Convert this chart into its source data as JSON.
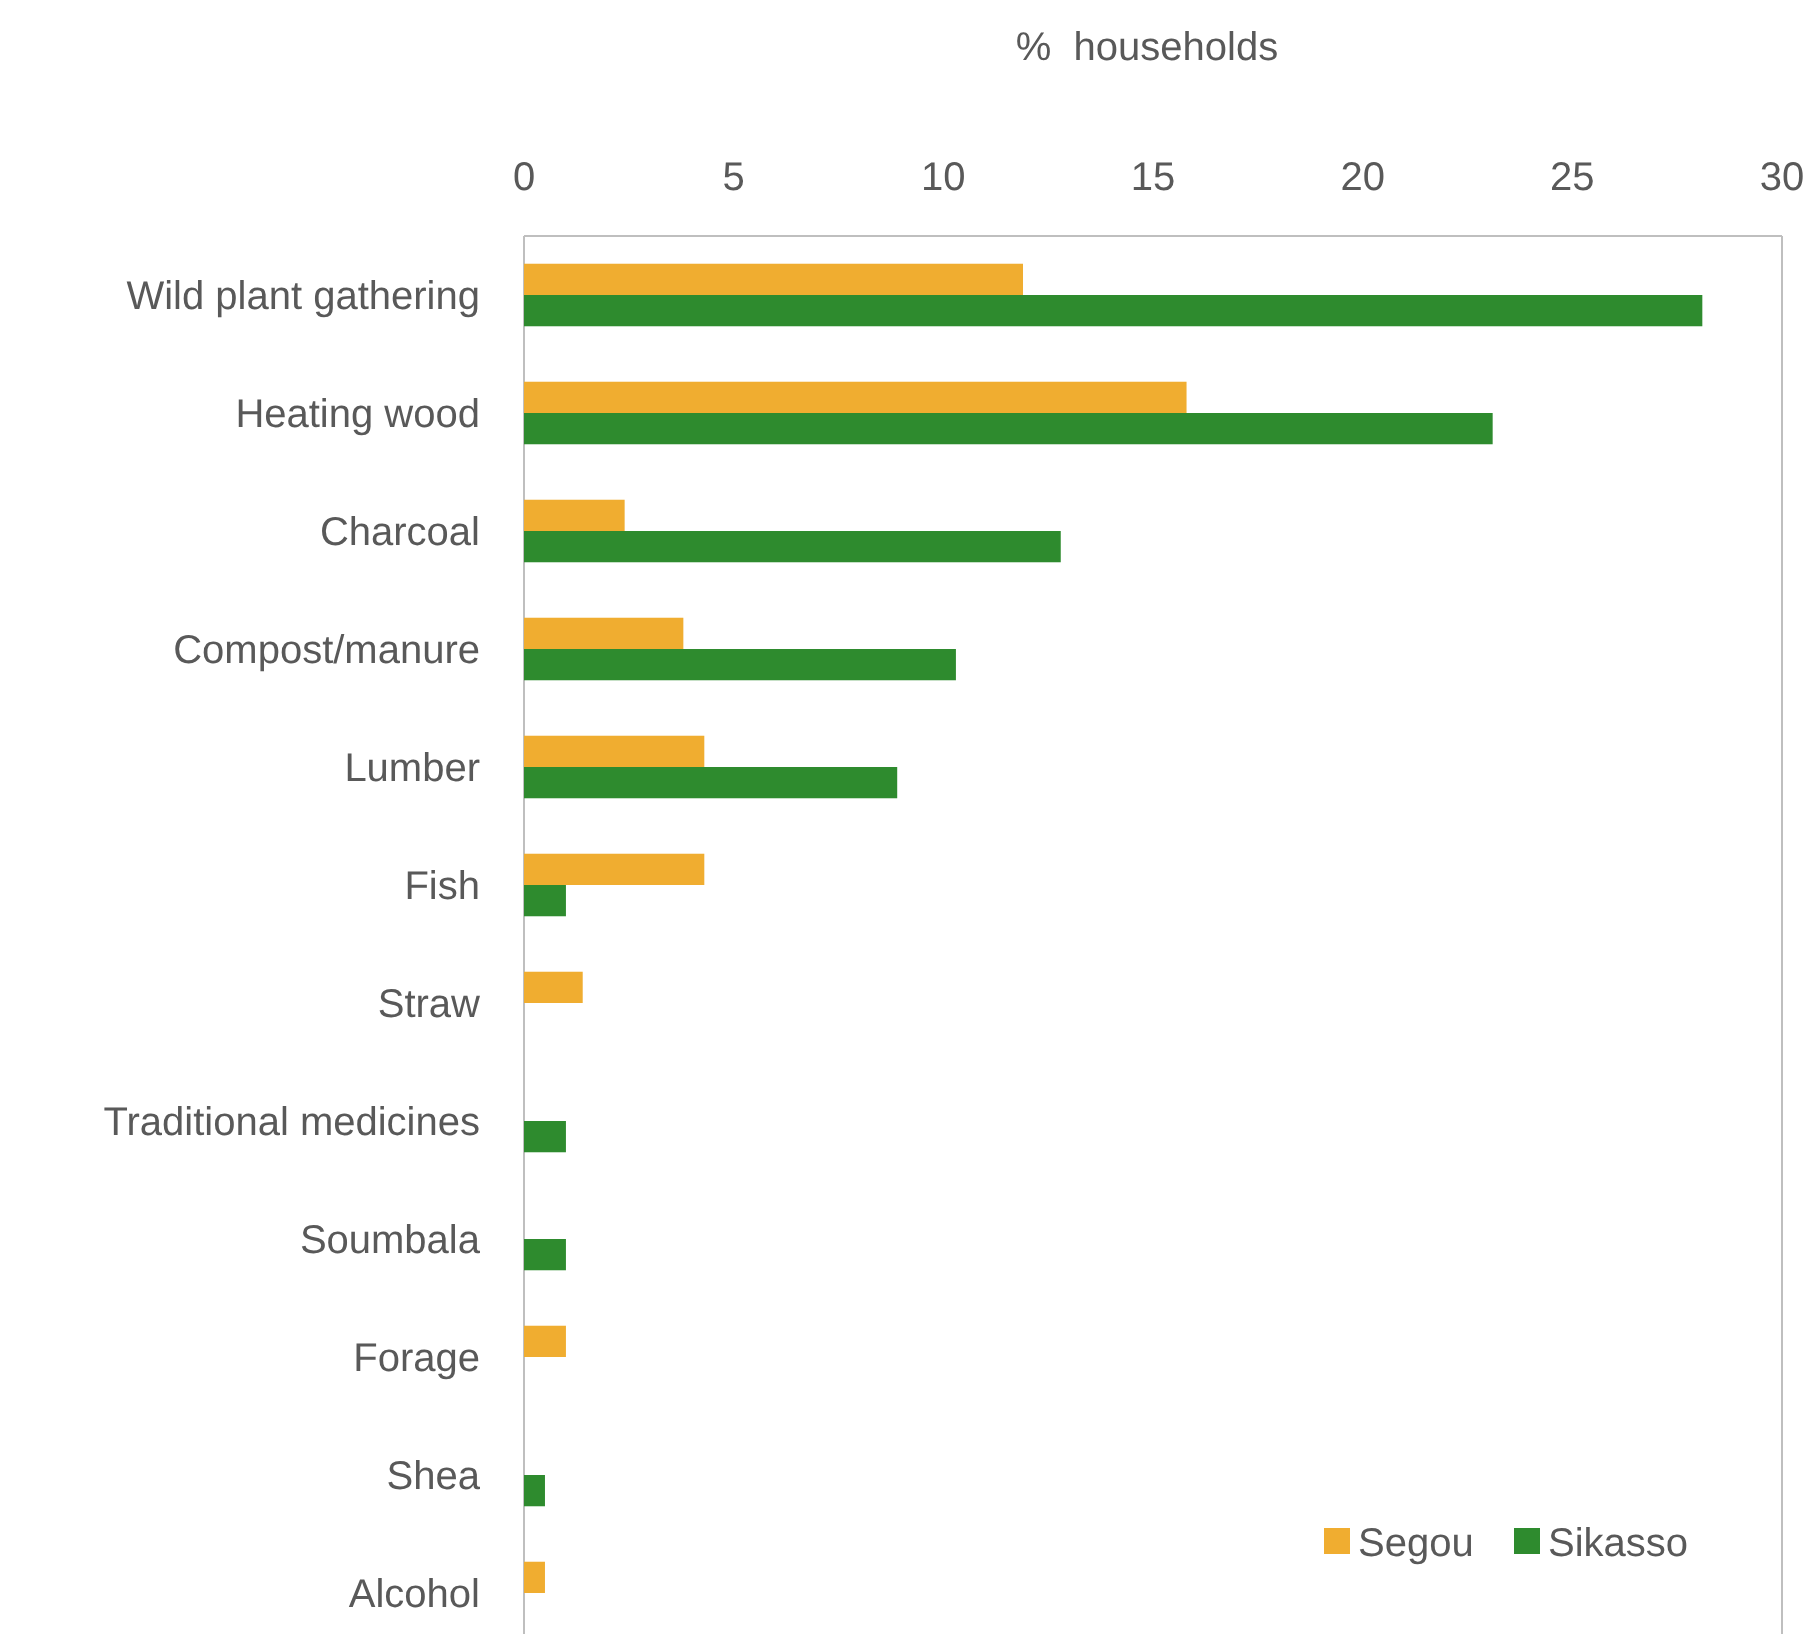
{
  "chart_data": {
    "type": "bar",
    "orientation": "horizontal",
    "xlabel": "%  households",
    "categories": [
      "Wild plant gathering",
      "Heating wood",
      "Charcoal",
      "Compost/manure",
      "Lumber",
      "Fish",
      "Straw",
      "Traditional medicines",
      "Soumbala",
      "Forage",
      "Shea",
      "Alcohol"
    ],
    "series": [
      {
        "name": "Segou",
        "color": "#f0ad30",
        "values": [
          11.9,
          15.8,
          2.4,
          3.8,
          4.3,
          4.3,
          1.4,
          null,
          null,
          1.0,
          null,
          0.5
        ]
      },
      {
        "name": "Sikasso",
        "color": "#2e8b2e",
        "values": [
          28.1,
          23.1,
          12.8,
          10.3,
          8.9,
          1.0,
          null,
          1.0,
          1.0,
          null,
          0.5,
          null
        ]
      }
    ],
    "xlim": [
      0,
      30
    ],
    "xticks": [
      0,
      5,
      10,
      15,
      20,
      25,
      30
    ],
    "grid": false,
    "legend": "bottom right"
  }
}
